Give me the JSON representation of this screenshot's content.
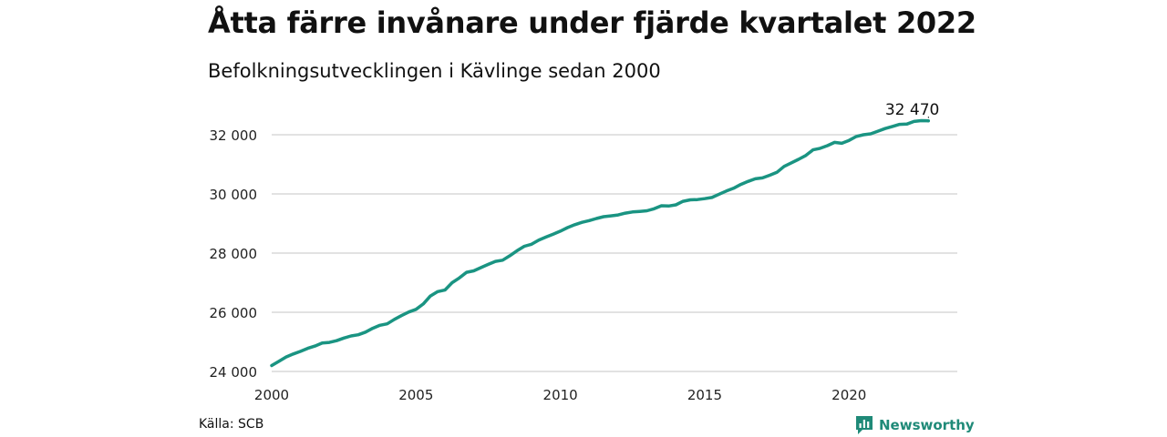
{
  "header": {
    "title": "Åtta färre invånare under fjärde kvartalet 2022",
    "subtitle": "Befolkningsutvecklingen i Kävlinge sedan 2000"
  },
  "footer": {
    "source": "Källa: SCB",
    "brand": "Newsworthy",
    "brand_icon": "bar-chart-logo-icon"
  },
  "colors": {
    "line": "#1a9482",
    "grid": "#d9d9d9",
    "brand": "#1f8a78"
  },
  "chart_data": {
    "type": "line",
    "title": "Åtta färre invånare under fjärde kvartalet 2022",
    "subtitle": "Befolkningsutvecklingen i Kävlinge sedan 2000",
    "xlabel": "",
    "ylabel": "",
    "xlim": [
      2000,
      2023.75
    ],
    "ylim": [
      24000,
      33000
    ],
    "x_ticks": [
      2000,
      2005,
      2010,
      2015,
      2020
    ],
    "x_tick_labels": [
      "2000",
      "2005",
      "2010",
      "2015",
      "2020"
    ],
    "y_ticks": [
      24000,
      26000,
      28000,
      30000,
      32000
    ],
    "y_tick_labels": [
      "24 000",
      "26 000",
      "28 000",
      "30 000",
      "32 000"
    ],
    "grid": "horizontal",
    "last_value_label": "32 470",
    "series": [
      {
        "x": [
          2000,
          2000.25,
          2000.5,
          2000.75,
          2001,
          2001.25,
          2001.5,
          2001.75,
          2002,
          2002.25,
          2002.5,
          2002.75,
          2003,
          2003.25,
          2003.5,
          2003.75,
          2004,
          2004.25,
          2004.5,
          2004.75,
          2005,
          2005.25,
          2005.5,
          2005.75,
          2006,
          2006.25,
          2006.5,
          2006.75,
          2007,
          2007.25,
          2007.5,
          2007.75,
          2008,
          2008.25,
          2008.5,
          2008.75,
          2009,
          2009.25,
          2009.5,
          2009.75,
          2010,
          2010.25,
          2010.5,
          2010.75,
          2011,
          2011.25,
          2011.5,
          2011.75,
          2012,
          2012.25,
          2012.5,
          2012.75,
          2013,
          2013.25,
          2013.5,
          2013.75,
          2014,
          2014.25,
          2014.5,
          2014.75,
          2015,
          2015.25,
          2015.5,
          2015.75,
          2016,
          2016.25,
          2016.5,
          2016.75,
          2017,
          2017.25,
          2017.5,
          2017.75,
          2018,
          2018.25,
          2018.5,
          2018.75,
          2019,
          2019.25,
          2019.5,
          2019.75,
          2020,
          2020.25,
          2020.5,
          2020.75,
          2021,
          2021.25,
          2021.5,
          2021.75,
          2022,
          2022.25,
          2022.5,
          2022.75
        ],
        "values": [
          24200,
          24340,
          24490,
          24590,
          24680,
          24780,
          24860,
          24960,
          24980,
          25040,
          25130,
          25200,
          25240,
          25330,
          25460,
          25560,
          25610,
          25760,
          25890,
          26010,
          26100,
          26280,
          26550,
          26700,
          26750,
          27000,
          27160,
          27350,
          27400,
          27510,
          27620,
          27720,
          27760,
          27910,
          28080,
          28230,
          28300,
          28440,
          28540,
          28640,
          28740,
          28860,
          28960,
          29040,
          29100,
          29170,
          29230,
          29260,
          29290,
          29350,
          29390,
          29410,
          29430,
          29500,
          29600,
          29590,
          29630,
          29750,
          29800,
          29810,
          29840,
          29880,
          29990,
          30100,
          30190,
          30320,
          30420,
          30510,
          30540,
          30630,
          30730,
          30930,
          31050,
          31170,
          31300,
          31490,
          31540,
          31630,
          31740,
          31710,
          31810,
          31940,
          32000,
          32030,
          32120,
          32210,
          32280,
          32350,
          32360,
          32450,
          32478,
          32470
        ]
      }
    ]
  }
}
